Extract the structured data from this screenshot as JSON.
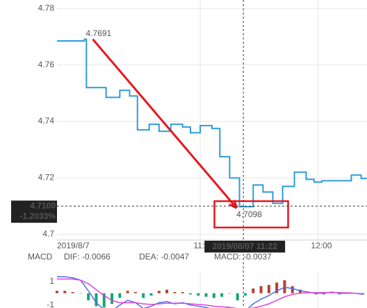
{
  "chart_data": {
    "type": "line",
    "x": [
      0,
      14,
      15,
      25,
      32,
      37,
      41,
      47,
      52,
      58,
      64,
      68,
      73,
      79,
      83,
      88,
      93,
      100,
      105,
      110,
      115,
      121,
      127,
      131,
      135,
      150,
      155
    ],
    "values": [
      4.7685,
      4.7691,
      4.752,
      4.7485,
      4.751,
      4.749,
      4.737,
      4.739,
      4.7365,
      4.739,
      4.738,
      4.736,
      4.7385,
      4.7375,
      4.7275,
      4.72,
      4.7098,
      4.7175,
      4.715,
      4.711,
      4.717,
      4.722,
      4.7195,
      4.7185,
      4.719,
      4.721,
      4.7198
    ],
    "color": "#2e9bd6",
    "xlim": [
      0,
      158
    ],
    "xticks": [
      {
        "value": 0,
        "label": "2019/8/7"
      },
      {
        "value": 73,
        "label": "11:00"
      },
      {
        "value": 133,
        "label": "12:00"
      }
    ],
    "ylim": [
      4.698,
      4.783
    ],
    "yticks": [
      4.78,
      4.76,
      4.74,
      4.72,
      4.7
    ],
    "grid": true,
    "crosshair": {
      "x": 95,
      "x_label": "2019/08/07 11:22",
      "y": {
        "value": 4.71,
        "label": "4.7100"
      },
      "change": {
        "value": -1.2033,
        "label": "-1.2033%"
      }
    },
    "annotations": [
      {
        "text": "4.7691",
        "x": 14,
        "y": 4.7691
      },
      {
        "text": "4.7098",
        "x": 93,
        "y": 4.7098
      }
    ],
    "annotation_color": "#e8141c",
    "macd": {
      "title": "MACD",
      "x": [
        0,
        4,
        8,
        12,
        16,
        20,
        24,
        28,
        32,
        36,
        40,
        44,
        48,
        52,
        56,
        60,
        64,
        68,
        72,
        76,
        80,
        84,
        88,
        92,
        96,
        100,
        104,
        108,
        112,
        116,
        120,
        124,
        128,
        132,
        136,
        140,
        144,
        148,
        152,
        156
      ],
      "ylim": [
        -1.25,
        1.8
      ],
      "yticks": [
        1,
        -1
      ],
      "up_color": "#b5402e",
      "down_color": "#1aa37a",
      "series": [
        {
          "name": "DIF: -0.0066",
          "color": "#4a6cf0",
          "values": [
            1.4,
            1.4,
            1.3,
            1.1,
            0.2,
            -0.8,
            -1.4,
            -1.5,
            -1.0,
            -0.6,
            -0.8,
            -1.3,
            -1.1,
            -0.8,
            -0.7,
            -0.9,
            -0.8,
            -1.0,
            -1.1,
            -1.2,
            -1.4,
            -1.4,
            -1.2,
            -1.8,
            -1.5,
            -0.9,
            -0.5,
            -0.2,
            0.2,
            0.5,
            0.4,
            0.2,
            0.1,
            0.0,
            0.0,
            0.1,
            0.0,
            0.0,
            0.0,
            -0.1
          ]
        },
        {
          "name": "DEA: -0.0047",
          "color": "#e040d8",
          "values": [
            1.2,
            1.2,
            1.2,
            1.1,
            0.8,
            0.3,
            -0.2,
            -0.6,
            -0.8,
            -0.8,
            -0.8,
            -0.9,
            -0.95,
            -0.9,
            -0.85,
            -0.85,
            -0.85,
            -0.9,
            -0.95,
            -1.0,
            -1.1,
            -1.15,
            -1.2,
            -1.3,
            -1.35,
            -1.25,
            -1.1,
            -0.9,
            -0.6,
            -0.3,
            -0.1,
            0.0,
            0.05,
            0.05,
            0.05,
            0.05,
            0.05,
            0.03,
            0.0,
            -0.05
          ]
        },
        {
          "name": "MACD: -0.0037",
          "color": "#b5402e",
          "type": "bar",
          "values": [
            0.2,
            0.2,
            0.1,
            0.0,
            -0.6,
            -1.1,
            -1.2,
            -0.9,
            -0.4,
            0.2,
            0.1,
            -0.4,
            -0.2,
            0.2,
            0.3,
            0.1,
            0.1,
            -0.1,
            -0.2,
            -0.3,
            -0.4,
            -0.3,
            0.0,
            -0.6,
            -0.2,
            0.4,
            0.6,
            0.7,
            0.9,
            1.1,
            0.6,
            0.3,
            0.1,
            -0.1,
            -0.1,
            0.1,
            -0.1,
            -0.05,
            0.0,
            -0.1
          ]
        }
      ]
    }
  }
}
